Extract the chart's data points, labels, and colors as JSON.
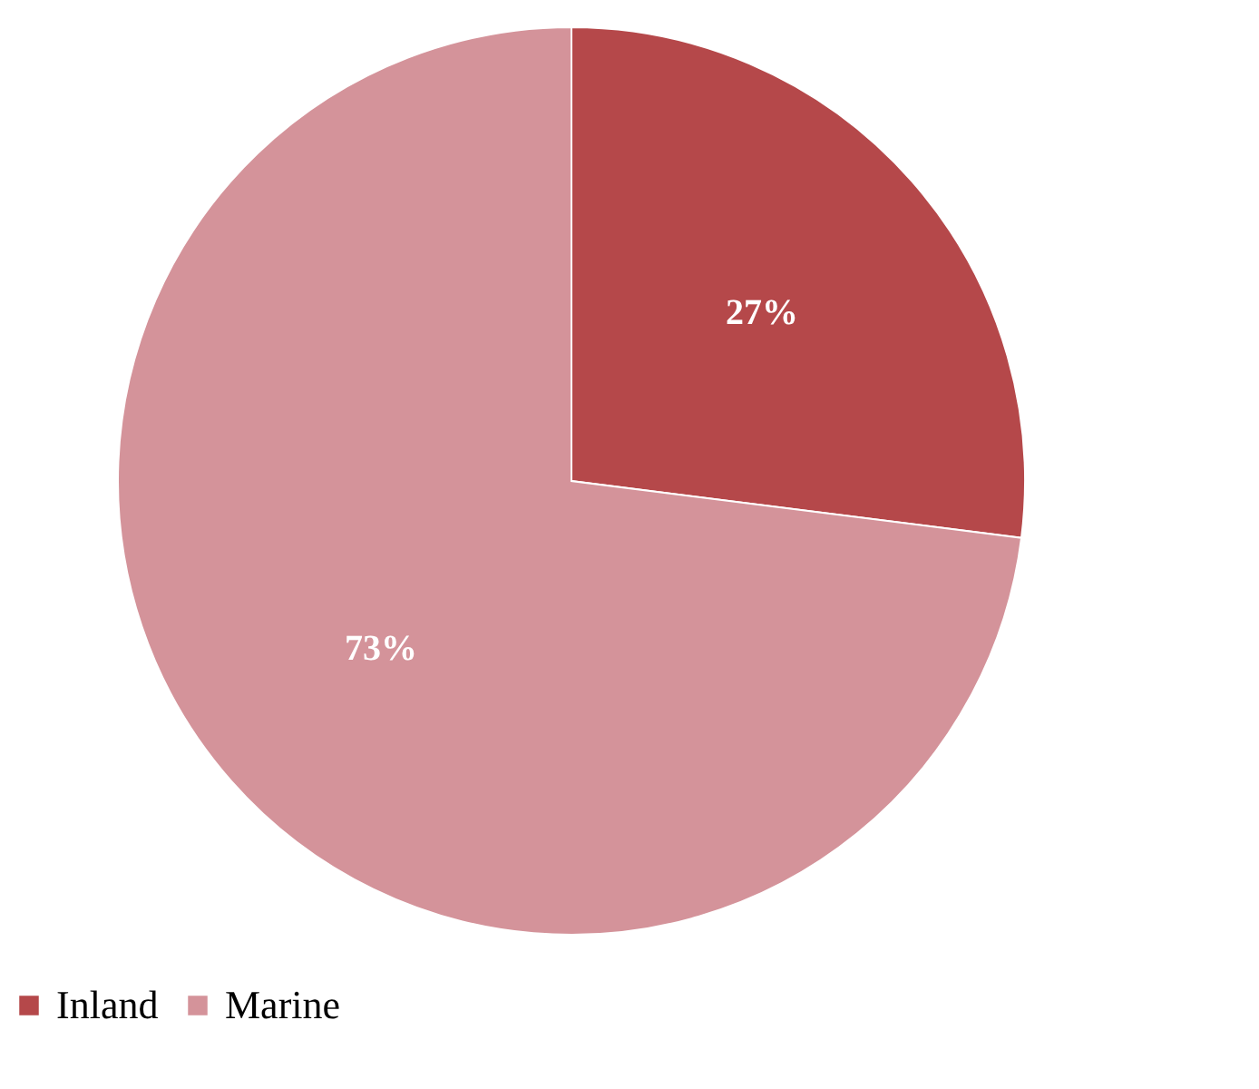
{
  "chart_data": {
    "type": "pie",
    "categories": [
      "Inland",
      "Marine"
    ],
    "values": [
      27,
      73
    ],
    "colors": [
      "#b5484a",
      "#d4939a"
    ],
    "value_labels": [
      "27%",
      "73%"
    ],
    "legend": "bottom"
  }
}
